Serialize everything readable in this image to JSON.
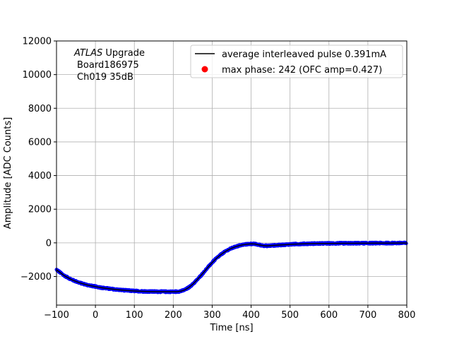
{
  "chart_data": {
    "type": "scatter",
    "title": "",
    "xlabel": "Time [ns]",
    "ylabel": "Amplitude [ADC Counts]",
    "xlim": [
      -100,
      800
    ],
    "ylim": [
      -3700,
      12000
    ],
    "xticks": [
      -100,
      0,
      100,
      200,
      300,
      400,
      500,
      600,
      700,
      800
    ],
    "yticks": [
      -2000,
      0,
      2000,
      4000,
      6000,
      8000,
      10000,
      12000
    ],
    "grid": true,
    "legend_position": "top-right",
    "annotation": {
      "line1_italic": "ATLAS",
      "line1_rest": " Upgrade",
      "line2": "Board186975",
      "line3": "Ch019 35dB"
    },
    "series": [
      {
        "name": "average interleaved pulse 0.391mA",
        "kind": "line",
        "color": "#000000",
        "x": [
          -100,
          -80,
          -60,
          -40,
          -20,
          0,
          20,
          40,
          60,
          80,
          100,
          120,
          140,
          160,
          180,
          200,
          210,
          220,
          230,
          240,
          250,
          260,
          270,
          280,
          290,
          300,
          310,
          320,
          330,
          340,
          350,
          360,
          370,
          380,
          390,
          400,
          410,
          420,
          430,
          440,
          460,
          480,
          500,
          520,
          540,
          560,
          580,
          600,
          620,
          640,
          660,
          680,
          700,
          720,
          740,
          760,
          780,
          800
        ],
        "y": [
          -1600,
          -1950,
          -2200,
          -2380,
          -2510,
          -2600,
          -2680,
          -2740,
          -2790,
          -2830,
          -2860,
          -2880,
          -2895,
          -2900,
          -2905,
          -2905,
          -2900,
          -2870,
          -2790,
          -2650,
          -2460,
          -2230,
          -1970,
          -1700,
          -1430,
          -1170,
          -940,
          -740,
          -570,
          -430,
          -320,
          -230,
          -160,
          -110,
          -80,
          -60,
          -70,
          -120,
          -160,
          -180,
          -150,
          -120,
          -90,
          -70,
          -55,
          -45,
          -40,
          -35,
          -30,
          -28,
          -25,
          -22,
          -20,
          -18,
          -16,
          -14,
          -12,
          -10
        ]
      },
      {
        "name": "phase samples",
        "kind": "samples",
        "color": "#0000ff"
      },
      {
        "name": "max phase: 242 (OFC amp=0.427)",
        "kind": "marker",
        "color": "#ff0000",
        "x": [],
        "y": []
      }
    ]
  }
}
